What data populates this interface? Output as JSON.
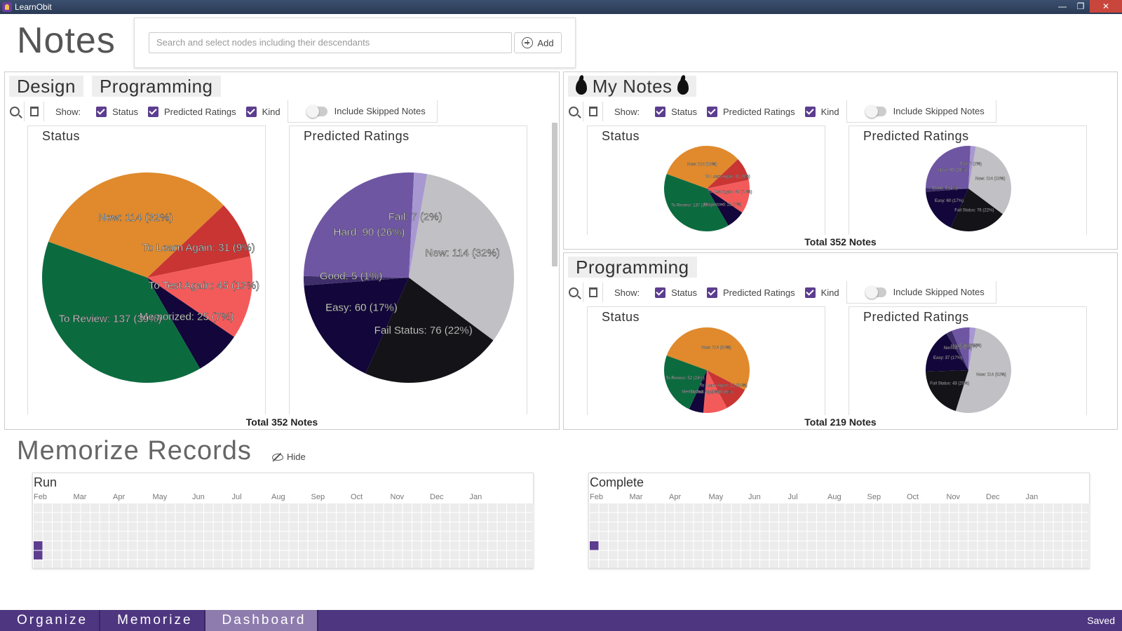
{
  "window": {
    "title": "LearnObit",
    "min": "—",
    "max": "❐",
    "close": "✕"
  },
  "notes_title": "Notes",
  "search": {
    "placeholder": "Search and select nodes including their descendants",
    "add_label": "Add"
  },
  "toolbar_labels": {
    "show": "Show:",
    "status": "Status",
    "predicted": "Predicted Ratings",
    "kind": "Kind",
    "skipped": "Include Skipped Notes"
  },
  "colors": {
    "new": "#e08a2d",
    "to_learn_again": "#c93533",
    "to_test_again": "#f35b5b",
    "memorized": "#12063a",
    "to_review": "#0b6b3f",
    "fail": "#a898d1",
    "hard": "#6e56a3",
    "good": "#3e2e6a",
    "easy": "#12063a",
    "fail_status": "#131318",
    "new_gray": "#c1c0c4",
    "accent": "#5c3d8f",
    "bottom_bar": "#4e3680"
  },
  "panels": [
    {
      "tabs": [
        "Design",
        "Programming"
      ],
      "status_title": "Status",
      "ratings_title": "Predicted Ratings",
      "total": "Total 352 Notes",
      "status_slices": [
        {
          "label": "New: 114 (32%)",
          "value": 114,
          "color": "new"
        },
        {
          "label": "To Learn Again: 31 (9%)",
          "value": 31,
          "color": "to_learn_again"
        },
        {
          "label": "To Test Again: 45 (13%)",
          "value": 45,
          "color": "to_test_again"
        },
        {
          "label": "Memorized: 25 (7%)",
          "value": 25,
          "color": "memorized"
        },
        {
          "label": "To Review: 137 (39%)",
          "value": 137,
          "color": "to_review"
        }
      ],
      "rating_slices": [
        {
          "label": "New: 114 (32%)",
          "value": 114,
          "color": "new_gray"
        },
        {
          "label": "Fail Status: 76 (22%)",
          "value": 76,
          "color": "fail_status"
        },
        {
          "label": "Easy: 60 (17%)",
          "value": 60,
          "color": "easy"
        },
        {
          "label": "Good: 5 (1%)",
          "value": 5,
          "color": "good"
        },
        {
          "label": "Hard: 90 (26%)",
          "value": 90,
          "color": "hard"
        },
        {
          "label": "Fail: 7 (2%)",
          "value": 7,
          "color": "fail"
        }
      ]
    },
    {
      "tabs": [
        "My Notes"
      ],
      "status_title": "Status",
      "ratings_title": "Predicted Ratings",
      "total": "Total 352 Notes",
      "status_slices": [
        {
          "label": "New: 114 (32%)",
          "value": 114,
          "color": "new"
        },
        {
          "label": "To Learn Again: 31 (9%)",
          "value": 31,
          "color": "to_learn_again"
        },
        {
          "label": "To Test Again: 45 (13%)",
          "value": 45,
          "color": "to_test_again"
        },
        {
          "label": "Memorized: 25 (7%)",
          "value": 25,
          "color": "memorized"
        },
        {
          "label": "To Review: 137 (39%)",
          "value": 137,
          "color": "to_review"
        }
      ],
      "rating_slices": [
        {
          "label": "New: 114 (32%)",
          "value": 114,
          "color": "new_gray"
        },
        {
          "label": "Fail Status: 76 (22%)",
          "value": 76,
          "color": "fail_status"
        },
        {
          "label": "Easy: 60 (17%)",
          "value": 60,
          "color": "easy"
        },
        {
          "label": "Good: 5 (1%)",
          "value": 5,
          "color": "good"
        },
        {
          "label": "Hard: 90 (26%)",
          "value": 90,
          "color": "hard"
        },
        {
          "label": "Fail: 7 (2%)",
          "value": 7,
          "color": "fail"
        }
      ]
    },
    {
      "tabs": [
        "Programming"
      ],
      "status_title": "Status",
      "ratings_title": "Predicted Ratings",
      "total": "Total 219 Notes",
      "status_slices": [
        {
          "label": "New: 114 (52%)",
          "value": 114,
          "color": "new"
        },
        {
          "label": "To Learn Again: 21 (10%)",
          "value": 21,
          "color": "to_learn_again"
        },
        {
          "label": "To Test Again: 20 (9%)",
          "value": 20,
          "color": "to_test_again"
        },
        {
          "label": "Memorized: 12 (5%)",
          "value": 12,
          "color": "memorized"
        },
        {
          "label": "To Review: 52 (24%)",
          "value": 52,
          "color": "to_review"
        }
      ],
      "rating_slices": [
        {
          "label": "New: 114 (52%)",
          "value": 114,
          "color": "new_gray"
        },
        {
          "label": "Fail Status: 43 (20%)",
          "value": 43,
          "color": "fail_status"
        },
        {
          "label": "Easy: 37 (17%)",
          "value": 37,
          "color": "easy"
        },
        {
          "label": "Normal: 5 (2%)",
          "value": 5,
          "color": "good"
        },
        {
          "label": "Hard: 15 (7%)",
          "value": 15,
          "color": "hard"
        },
        {
          "label": "Fail: 5 (2%)",
          "value": 5,
          "color": "fail"
        }
      ]
    }
  ],
  "chart_data": [
    {
      "type": "pie",
      "title": "Status",
      "categories": [
        "New",
        "To Learn Again",
        "To Test Again",
        "Memorized",
        "To Review"
      ],
      "values": [
        114,
        31,
        45,
        25,
        137
      ]
    },
    {
      "type": "pie",
      "title": "Predicted Ratings",
      "categories": [
        "New",
        "Fail Status",
        "Easy",
        "Good",
        "Hard",
        "Fail"
      ],
      "values": [
        114,
        76,
        60,
        5,
        90,
        7
      ]
    },
    {
      "type": "pie",
      "title": "Status",
      "categories": [
        "New",
        "To Learn Again",
        "To Test Again",
        "Memorized",
        "To Review"
      ],
      "values": [
        114,
        31,
        45,
        25,
        137
      ]
    },
    {
      "type": "pie",
      "title": "Predicted Ratings",
      "categories": [
        "New",
        "Fail Status",
        "Easy",
        "Good",
        "Hard",
        "Fail"
      ],
      "values": [
        114,
        76,
        60,
        5,
        90,
        7
      ]
    },
    {
      "type": "pie",
      "title": "Status",
      "categories": [
        "New",
        "To Learn Again",
        "To Test Again",
        "Memorized",
        "To Review"
      ],
      "values": [
        114,
        21,
        20,
        12,
        52
      ]
    },
    {
      "type": "pie",
      "title": "Predicted Ratings",
      "categories": [
        "New",
        "Fail Status",
        "Easy",
        "Normal",
        "Hard",
        "Fail"
      ],
      "values": [
        114,
        43,
        37,
        5,
        15,
        5
      ]
    }
  ],
  "memorize": {
    "title": "Memorize Records",
    "hide_label": "Hide",
    "months": [
      "Feb",
      "Mar",
      "Apr",
      "May",
      "Jun",
      "Jul",
      "Aug",
      "Sep",
      "Oct",
      "Nov",
      "Dec",
      "Jan"
    ],
    "run": {
      "title": "Run",
      "weeks": 53,
      "active": [
        [
          0,
          4
        ],
        [
          0,
          5
        ]
      ]
    },
    "complete": {
      "title": "Complete",
      "weeks": 53,
      "active": [
        [
          0,
          4
        ]
      ]
    }
  },
  "nav": {
    "organize": "Organize",
    "memorize": "Memorize",
    "dashboard": "Dashboard",
    "saved": "Saved"
  }
}
